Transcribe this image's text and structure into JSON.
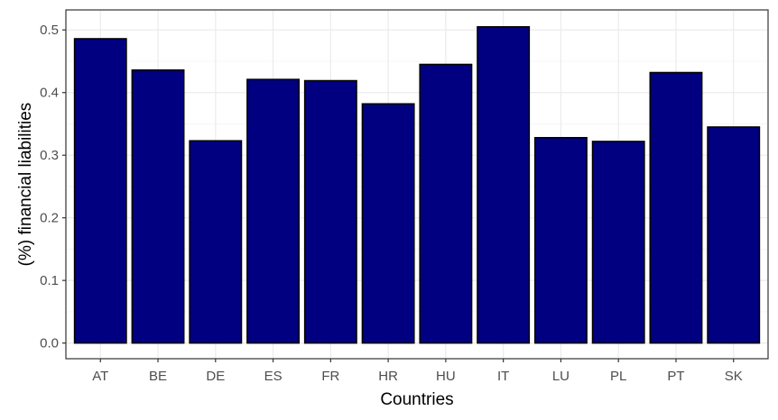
{
  "chart_data": {
    "type": "bar",
    "title": "",
    "xlabel": "Countries",
    "ylabel": "(%) financial liabilities",
    "categories": [
      "AT",
      "BE",
      "DE",
      "ES",
      "FR",
      "HR",
      "HU",
      "IT",
      "LU",
      "PL",
      "PT",
      "SK"
    ],
    "values": [
      0.486,
      0.436,
      0.323,
      0.421,
      0.419,
      0.382,
      0.445,
      0.505,
      0.328,
      0.322,
      0.432,
      0.345
    ],
    "ylim": [
      -0.025,
      0.532
    ],
    "yticks": [
      0.0,
      0.1,
      0.2,
      0.3,
      0.4,
      0.5
    ],
    "ytick_labels": [
      "0.0",
      "0.1",
      "0.2",
      "0.3",
      "0.4",
      "0.5"
    ],
    "grid": true,
    "legend": "none",
    "colors": {
      "bar_fill": "#000080",
      "bar_stroke": "#000000",
      "grid_major": "#ebebeb",
      "grid_minor": "#f5f5f5",
      "panel_border": "#333333"
    }
  }
}
